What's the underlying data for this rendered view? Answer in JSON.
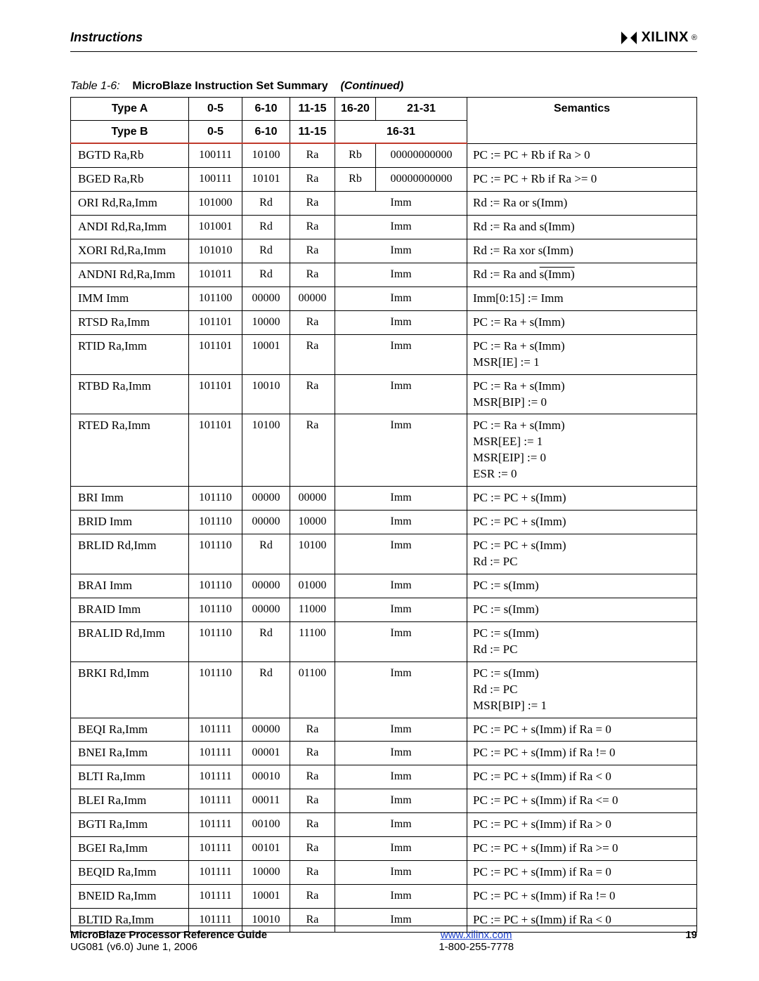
{
  "header": {
    "section": "Instructions",
    "brand": "XILINX",
    "reg": "®"
  },
  "caption": {
    "label": "Table 1-6:",
    "title": "MicroBlaze Instruction Set Summary",
    "cont": "(Continued)"
  },
  "thA": {
    "t": "Type A",
    "c1": "0-5",
    "c2": "6-10",
    "c3": "11-15",
    "c4": "16-20",
    "c5": "21-31",
    "sem": "Semantics"
  },
  "thB": {
    "t": "Type B",
    "c1": "0-5",
    "c2": "6-10",
    "c3": "11-15",
    "c45": "16-31"
  },
  "rows": [
    {
      "i": "BGTD Ra,Rb",
      "a": "100111",
      "b": "10100",
      "c": "Ra",
      "d": "Rb",
      "e": "00000000000",
      "s": "PC := PC + Rb if Ra > 0"
    },
    {
      "i": "BGED Ra,Rb",
      "a": "100111",
      "b": "10101",
      "c": "Ra",
      "d": "Rb",
      "e": "00000000000",
      "s": "PC := PC + Rb if Ra >= 0"
    },
    {
      "i": "ORI Rd,Ra,Imm",
      "a": "101000",
      "b": "Rd",
      "c": "Ra",
      "de": "Imm",
      "s": "Rd := Ra or s(Imm)"
    },
    {
      "i": "ANDI Rd,Ra,Imm",
      "a": "101001",
      "b": "Rd",
      "c": "Ra",
      "de": "Imm",
      "s": "Rd := Ra and s(Imm)"
    },
    {
      "i": "XORI Rd,Ra,Imm",
      "a": "101010",
      "b": "Rd",
      "c": "Ra",
      "de": "Imm",
      "s": "Rd := Ra xor s(Imm)"
    },
    {
      "i": "ANDNI Rd,Ra,Imm",
      "a": "101011",
      "b": "Rd",
      "c": "Ra",
      "de": "Imm",
      "s_html": "Rd := Ra and <span class=\"overline\">s(Imm)</span>"
    },
    {
      "i": "IMM Imm",
      "a": "101100",
      "b": "00000",
      "c": "00000",
      "de": "Imm",
      "s": "Imm[0:15] := Imm"
    },
    {
      "i": "RTSD Ra,Imm",
      "a": "101101",
      "b": "10000",
      "c": "Ra",
      "de": "Imm",
      "s": "PC := Ra + s(Imm)"
    },
    {
      "i": "RTID Ra,Imm",
      "a": "101101",
      "b": "10001",
      "c": "Ra",
      "de": "Imm",
      "s_html": "PC := Ra + s(Imm)<br>MSR[IE] := 1"
    },
    {
      "i": "RTBD Ra,Imm",
      "a": "101101",
      "b": "10010",
      "c": "Ra",
      "de": "Imm",
      "s_html": "PC := Ra + s(Imm)<br>MSR[BIP] := 0"
    },
    {
      "i": "RTED Ra,Imm",
      "a": "101101",
      "b": "10100",
      "c": "Ra",
      "de": "Imm",
      "s_html": "PC := Ra + s(Imm)<br>MSR[EE] := 1<br>MSR[EIP] := 0<br>ESR := 0"
    },
    {
      "i": "BRI Imm",
      "a": "101110",
      "b": "00000",
      "c": "00000",
      "de": "Imm",
      "s": "PC := PC + s(Imm)"
    },
    {
      "i": "BRID Imm",
      "a": "101110",
      "b": "00000",
      "c": "10000",
      "de": "Imm",
      "s": "PC := PC + s(Imm)"
    },
    {
      "i": "BRLID Rd,Imm",
      "a": "101110",
      "b": "Rd",
      "c": "10100",
      "de": "Imm",
      "s_html": "PC := PC + s(Imm)<br>Rd := PC"
    },
    {
      "i": "BRAI Imm",
      "a": "101110",
      "b": "00000",
      "c": "01000",
      "de": "Imm",
      "s": "PC := s(Imm)"
    },
    {
      "i": "BRAID Imm",
      "a": "101110",
      "b": "00000",
      "c": "11000",
      "de": "Imm",
      "s": "PC := s(Imm)"
    },
    {
      "i": "BRALID Rd,Imm",
      "a": "101110",
      "b": "Rd",
      "c": "11100",
      "de": "Imm",
      "s_html": "PC := s(Imm)<br>Rd := PC"
    },
    {
      "i": "BRKI Rd,Imm",
      "a": "101110",
      "b": "Rd",
      "c": "01100",
      "de": "Imm",
      "s_html": "PC := s(Imm)<br>Rd := PC<br>MSR[BIP] := 1"
    },
    {
      "i": "BEQI Ra,Imm",
      "a": "101111",
      "b": "00000",
      "c": "Ra",
      "de": "Imm",
      "s": "PC := PC + s(Imm) if Ra = 0"
    },
    {
      "i": "BNEI Ra,Imm",
      "a": "101111",
      "b": "00001",
      "c": "Ra",
      "de": "Imm",
      "s": "PC := PC + s(Imm) if Ra != 0"
    },
    {
      "i": "BLTI Ra,Imm",
      "a": "101111",
      "b": "00010",
      "c": "Ra",
      "de": "Imm",
      "s": "PC := PC + s(Imm) if Ra < 0"
    },
    {
      "i": "BLEI Ra,Imm",
      "a": "101111",
      "b": "00011",
      "c": "Ra",
      "de": "Imm",
      "s": "PC := PC + s(Imm) if Ra <= 0"
    },
    {
      "i": "BGTI Ra,Imm",
      "a": "101111",
      "b": "00100",
      "c": "Ra",
      "de": "Imm",
      "s": "PC := PC + s(Imm) if Ra > 0"
    },
    {
      "i": "BGEI Ra,Imm",
      "a": "101111",
      "b": "00101",
      "c": "Ra",
      "de": "Imm",
      "s": "PC := PC + s(Imm) if Ra >= 0"
    },
    {
      "i": "BEQID Ra,Imm",
      "a": "101111",
      "b": "10000",
      "c": "Ra",
      "de": "Imm",
      "s": "PC := PC + s(Imm) if Ra = 0"
    },
    {
      "i": "BNEID Ra,Imm",
      "a": "101111",
      "b": "10001",
      "c": "Ra",
      "de": "Imm",
      "s": "PC := PC + s(Imm) if Ra != 0"
    },
    {
      "i": "BLTID Ra,Imm",
      "a": "101111",
      "b": "10010",
      "c": "Ra",
      "de": "Imm",
      "s": "PC := PC + s(Imm) if Ra < 0"
    }
  ],
  "footer": {
    "guide": "MicroBlaze Processor Reference Guide",
    "ug": "UG081 (v6.0) June 1, 2006",
    "url": "www.xilinx.com",
    "phone": "1-800-255-7778",
    "page": "19"
  }
}
